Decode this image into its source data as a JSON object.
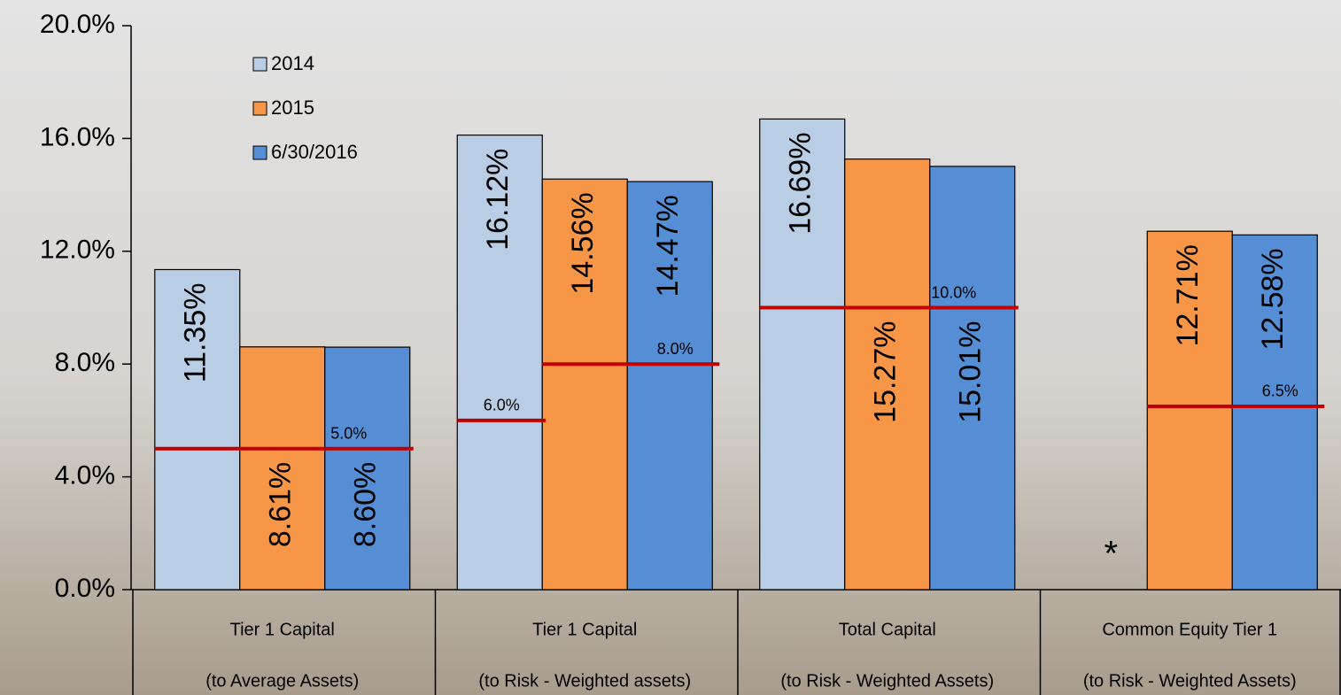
{
  "chart_data": {
    "type": "bar",
    "categories": [
      [
        "Tier 1 Capital",
        "(to Average Assets)"
      ],
      [
        "Tier 1 Capital",
        "(to Risk - Weighted assets)"
      ],
      [
        "Total Capital",
        "(to Risk - Weighted Assets)"
      ],
      [
        "Common Equity Tier 1",
        "(to Risk - Weighted Assets)"
      ]
    ],
    "series": [
      {
        "name": "2014",
        "color": "#b9cde5",
        "values": [
          11.35,
          16.12,
          16.69,
          null
        ],
        "value_labels": [
          "11.35%",
          "16.12%",
          "16.69%",
          null
        ]
      },
      {
        "name": "2015",
        "color": "#f79646",
        "values": [
          8.61,
          14.56,
          15.27,
          12.71
        ],
        "value_labels": [
          "8.61%",
          "14.56%",
          "15.27%",
          "12.71%"
        ]
      },
      {
        "name": "6/30/2016",
        "color": "#558ed5",
        "values": [
          8.6,
          14.47,
          15.01,
          12.58
        ],
        "value_labels": [
          "8.60%",
          "14.47%",
          "15.01%",
          "12.58%"
        ]
      }
    ],
    "thresholds": [
      {
        "value": 5.0,
        "label": "5.0%"
      },
      {
        "value": 6.0,
        "label": "6.0%"
      },
      {
        "value": 8.0,
        "label": "8.0%"
      },
      {
        "value": 10.0,
        "label": "10.0%"
      },
      {
        "value": 6.5,
        "label": "6.5%"
      }
    ],
    "threshold_color": "#c00000",
    "annotation": "*",
    "ylim": [
      0,
      20
    ],
    "yticks": [
      {
        "value": 0,
        "label": "0.0%"
      },
      {
        "value": 4,
        "label": "4.0%"
      },
      {
        "value": 8,
        "label": "8.0%"
      },
      {
        "value": 12,
        "label": "12.0%"
      },
      {
        "value": 16,
        "label": "16.0%"
      },
      {
        "value": 20,
        "label": "20.0%"
      }
    ],
    "legend": "upper left"
  }
}
